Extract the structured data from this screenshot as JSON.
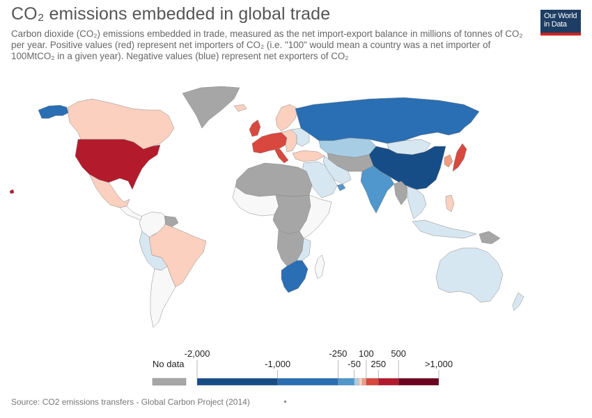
{
  "header": {
    "title": "CO₂ emissions embedded in global trade",
    "subtitle": "Carbon dioxide (CO₂) emissions embedded in trade, measured as the net import-export balance in millions of tonnes of CO₂ per year. Positive values (red) represent net importers of CO₂ (i.e. \"100\" would mean a country was a net importer of 100MtCO₂ in a given year). Negative values (blue) represent net exporters of CO₂"
  },
  "logo": {
    "line1": "Our World",
    "line2": "in Data"
  },
  "legend": {
    "no_data_label": "No data",
    "no_data_color": "#a6a6a6",
    "bins": [
      {
        "from": -2000,
        "to": -1000,
        "color": "#174d87"
      },
      {
        "from": -1000,
        "to": -250,
        "color": "#2a6eb3"
      },
      {
        "from": -250,
        "to": -50,
        "color": "#4f97cc"
      },
      {
        "from": -50,
        "to": -10,
        "color": "#a6cde4"
      },
      {
        "from": -10,
        "to": 0,
        "color": "#d7e7f1"
      },
      {
        "from": 0,
        "to": 10,
        "color": "#f8f8f8"
      },
      {
        "from": 10,
        "to": 50,
        "color": "#fbd0be"
      },
      {
        "from": 50,
        "to": 100,
        "color": "#f19d84"
      },
      {
        "from": 100,
        "to": 250,
        "color": "#d8483f"
      },
      {
        "from": 250,
        "to": 500,
        "color": "#b31b2c"
      },
      {
        "from": 500,
        "to": 1000,
        "color": "#6d0220"
      }
    ],
    "ticks": [
      {
        "label": "-2,000",
        "value": -2000,
        "row": "top"
      },
      {
        "label": "-1,000",
        "value": -1000,
        "row": "bottom"
      },
      {
        "label": "-250",
        "value": -250,
        "row": "top"
      },
      {
        "label": "-50",
        "value": -50,
        "row": "bottom"
      },
      {
        "label": "100",
        "value": 100,
        "row": "top"
      },
      {
        "label": "250",
        "value": 250,
        "row": "bottom"
      },
      {
        "label": "500",
        "value": 500,
        "row": "top"
      },
      {
        "label": ">1,000",
        "value": 1000,
        "row": "bottom"
      }
    ]
  },
  "regions": [
    {
      "name": "alaska",
      "color": "#2a6eb3"
    },
    {
      "name": "canada",
      "color": "#fbd0be"
    },
    {
      "name": "greenland",
      "color": "#a6a6a6"
    },
    {
      "name": "united-states",
      "color": "#b31b2c"
    },
    {
      "name": "mexico",
      "color": "#fbd0be"
    },
    {
      "name": "central-america",
      "color": "#f8f8f8"
    },
    {
      "name": "colombia-region",
      "color": "#f8f8f8"
    },
    {
      "name": "guyanas",
      "color": "#a6a6a6"
    },
    {
      "name": "brazil",
      "color": "#fbd0be"
    },
    {
      "name": "peru-bolivia",
      "color": "#d7e7f1"
    },
    {
      "name": "southern-cone",
      "color": "#f8f8f8"
    },
    {
      "name": "iceland",
      "color": "#fbd0be"
    },
    {
      "name": "scandinavia",
      "color": "#fbd0be"
    },
    {
      "name": "uk",
      "color": "#d8483f"
    },
    {
      "name": "western-europe",
      "color": "#d8483f"
    },
    {
      "name": "italy",
      "color": "#d8483f"
    },
    {
      "name": "eastern-europe",
      "color": "#fbd0be"
    },
    {
      "name": "ukraine-belarus",
      "color": "#d7e7f1"
    },
    {
      "name": "russia",
      "color": "#2a6eb3"
    },
    {
      "name": "kazakhstan",
      "color": "#a6cde4"
    },
    {
      "name": "mongolia",
      "color": "#d7e7f1"
    },
    {
      "name": "china",
      "color": "#174d87"
    },
    {
      "name": "korea",
      "color": "#f19d84"
    },
    {
      "name": "japan",
      "color": "#d8483f"
    },
    {
      "name": "turkey",
      "color": "#fbd0be"
    },
    {
      "name": "central-asia",
      "color": "#a6a6a6"
    },
    {
      "name": "middle-east",
      "color": "#d7e7f1"
    },
    {
      "name": "iran",
      "color": "#d7e7f1"
    },
    {
      "name": "uae",
      "color": "#4f97cc"
    },
    {
      "name": "india",
      "color": "#4f97cc"
    },
    {
      "name": "myanmar-region",
      "color": "#a6a6a6"
    },
    {
      "name": "southeast-asia",
      "color": "#d7e7f1"
    },
    {
      "name": "philippines",
      "color": "#fbd0be"
    },
    {
      "name": "indonesia",
      "color": "#d7e7f1"
    },
    {
      "name": "new-guinea",
      "color": "#a6a6a6"
    },
    {
      "name": "australia",
      "color": "#d7e7f1"
    },
    {
      "name": "new-zealand",
      "color": "#d7e7f1"
    },
    {
      "name": "north-africa",
      "color": "#a6a6a6"
    },
    {
      "name": "west-africa",
      "color": "#f8f8f8"
    },
    {
      "name": "central-africa",
      "color": "#a6a6a6"
    },
    {
      "name": "east-africa",
      "color": "#f8f8f8"
    },
    {
      "name": "southern-africa",
      "color": "#a6a6a6"
    },
    {
      "name": "mozambique",
      "color": "#d7e7f1"
    },
    {
      "name": "south-africa",
      "color": "#2a6eb3"
    },
    {
      "name": "madagascar",
      "color": "#f8f8f8"
    },
    {
      "name": "hawaii",
      "color": "#b31b2c"
    }
  ],
  "footer": {
    "source": "Source: CO2 emissions transfers - Global Carbon Project (2014)"
  }
}
